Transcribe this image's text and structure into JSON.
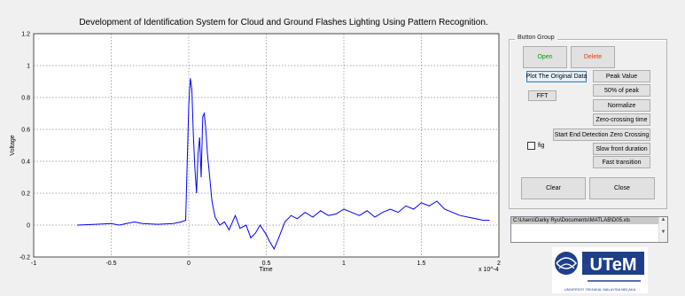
{
  "title": "Development of Identification System for Cloud and Ground Flashes Lighting Using Pattern Recognition.",
  "chart_data": {
    "type": "line",
    "xlabel": "Time",
    "ylabel": "Voltage",
    "x_multiplier": "x 10^-4",
    "xlim": [
      -1,
      2
    ],
    "ylim": [
      -0.2,
      1.2
    ],
    "xticks": [
      "-1",
      "-0.5",
      "0",
      "0.5",
      "1",
      "1.5",
      "2"
    ],
    "yticks": [
      "-0.2",
      "0",
      "0.2",
      "0.4",
      "0.6",
      "0.8",
      "1",
      "1.2"
    ],
    "grid": true,
    "series": [
      {
        "color": "#0000ff",
        "x": [
          -0.72,
          -0.6,
          -0.5,
          -0.45,
          -0.35,
          -0.3,
          -0.2,
          -0.1,
          -0.05,
          -0.02,
          0.0,
          0.01,
          0.02,
          0.03,
          0.04,
          0.05,
          0.06,
          0.07,
          0.08,
          0.09,
          0.1,
          0.11,
          0.12,
          0.13,
          0.14,
          0.15,
          0.17,
          0.2,
          0.23,
          0.26,
          0.3,
          0.33,
          0.37,
          0.4,
          0.43,
          0.46,
          0.5,
          0.52,
          0.55,
          0.58,
          0.62,
          0.66,
          0.7,
          0.75,
          0.8,
          0.85,
          0.9,
          0.95,
          1.0,
          1.05,
          1.1,
          1.15,
          1.2,
          1.25,
          1.3,
          1.35,
          1.4,
          1.45,
          1.5,
          1.55,
          1.6,
          1.65,
          1.7,
          1.75,
          1.8,
          1.85,
          1.9,
          1.94
        ],
        "y": [
          0.0,
          0.005,
          0.01,
          0.0,
          0.02,
          0.01,
          0.005,
          0.01,
          0.02,
          0.03,
          0.75,
          0.92,
          0.85,
          0.55,
          0.35,
          0.2,
          0.45,
          0.55,
          0.3,
          0.68,
          0.7,
          0.6,
          0.45,
          0.35,
          0.25,
          0.15,
          0.05,
          0.0,
          0.02,
          -0.03,
          0.06,
          -0.02,
          0.0,
          -0.08,
          -0.05,
          0.0,
          -0.06,
          -0.1,
          -0.15,
          -0.08,
          0.02,
          0.06,
          0.04,
          0.08,
          0.05,
          0.09,
          0.06,
          0.07,
          0.1,
          0.08,
          0.06,
          0.09,
          0.05,
          0.08,
          0.1,
          0.08,
          0.12,
          0.1,
          0.14,
          0.12,
          0.15,
          0.1,
          0.08,
          0.06,
          0.05,
          0.04,
          0.03,
          0.03
        ]
      }
    ]
  },
  "button_group": {
    "label": "Button Group",
    "open": "Open",
    "delete": "Delete",
    "plot_original": "Plot The Original Data",
    "peak_value": "Peak Value",
    "fifty_peak": "50% of peak",
    "fft": "FFT",
    "normalize": "Normalize",
    "fig_checkbox": "fig",
    "zero_crossing": "Zero-crossing time",
    "start_end": "Start End Detection Zero Crossing",
    "slow_front": "Slow front duration",
    "fast_transition": "Fast transition",
    "clear": "Clear",
    "close": "Close",
    "open_color": "#00a000",
    "delete_color": "#e04000"
  },
  "file_list": {
    "selected": "C:\\Users\\Darky Ryu\\Documents\\MATLAB\\D05.xls"
  },
  "logo": {
    "text": "UTeM",
    "subtitle": "UNIVERSITI TEKNIKAL MALAYSIA MELAKA"
  }
}
